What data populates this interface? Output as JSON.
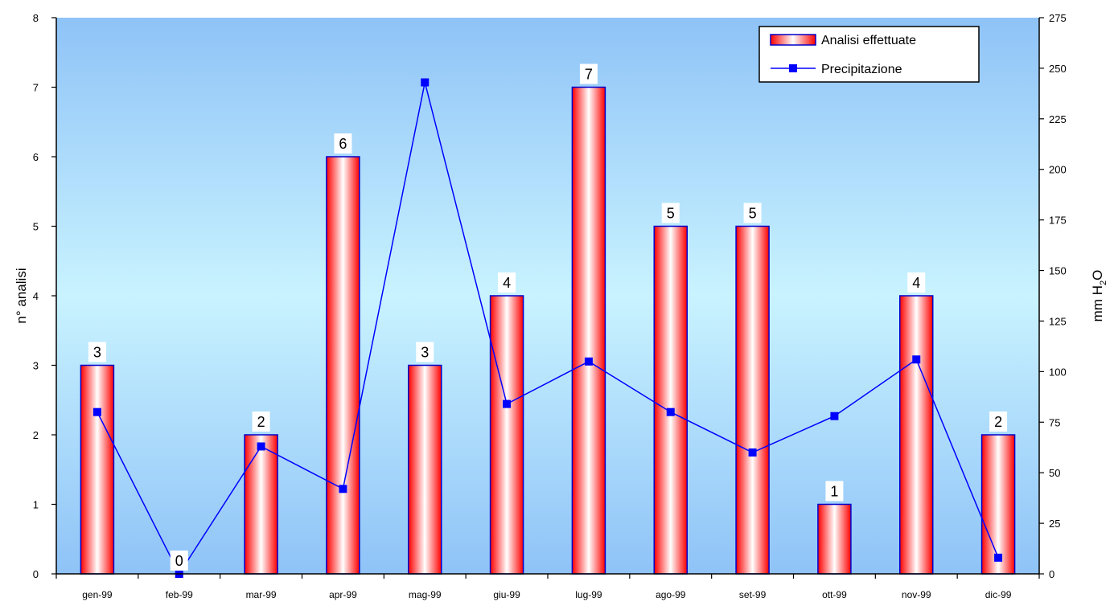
{
  "chart_data": {
    "type": "bar",
    "categories": [
      "gen-99",
      "feb-99",
      "mar-99",
      "apr-99",
      "mag-99",
      "giu-99",
      "lug-99",
      "ago-99",
      "set-99",
      "ott-99",
      "nov-99",
      "dic-99"
    ],
    "series": [
      {
        "name": "Analisi effettuate",
        "type": "bar",
        "axis": "left",
        "values": [
          3,
          0,
          2,
          6,
          3,
          4,
          7,
          5,
          5,
          1,
          4,
          2
        ]
      },
      {
        "name": "Precipitazione",
        "type": "line",
        "axis": "right",
        "values": [
          80,
          0,
          63,
          42,
          243,
          84,
          105,
          80,
          60,
          78,
          106,
          8
        ]
      }
    ],
    "ylabel": "n° analisi",
    "ylabel_right": "mm H2O",
    "ylim": [
      0,
      8
    ],
    "yticks": [
      0,
      1,
      2,
      3,
      4,
      5,
      6,
      7,
      8
    ],
    "ylim_right": [
      0,
      275
    ],
    "yticks_right": [
      0,
      25,
      50,
      75,
      100,
      125,
      150,
      175,
      200,
      225,
      250,
      275
    ],
    "legend_position": "top-right",
    "grid": false,
    "colors": {
      "bar": "#ff0000",
      "bar_border": "#0000cc",
      "line": "#0000ff",
      "bg_top": "#8fc3f7",
      "bg_mid": "#c9f3ff"
    }
  }
}
